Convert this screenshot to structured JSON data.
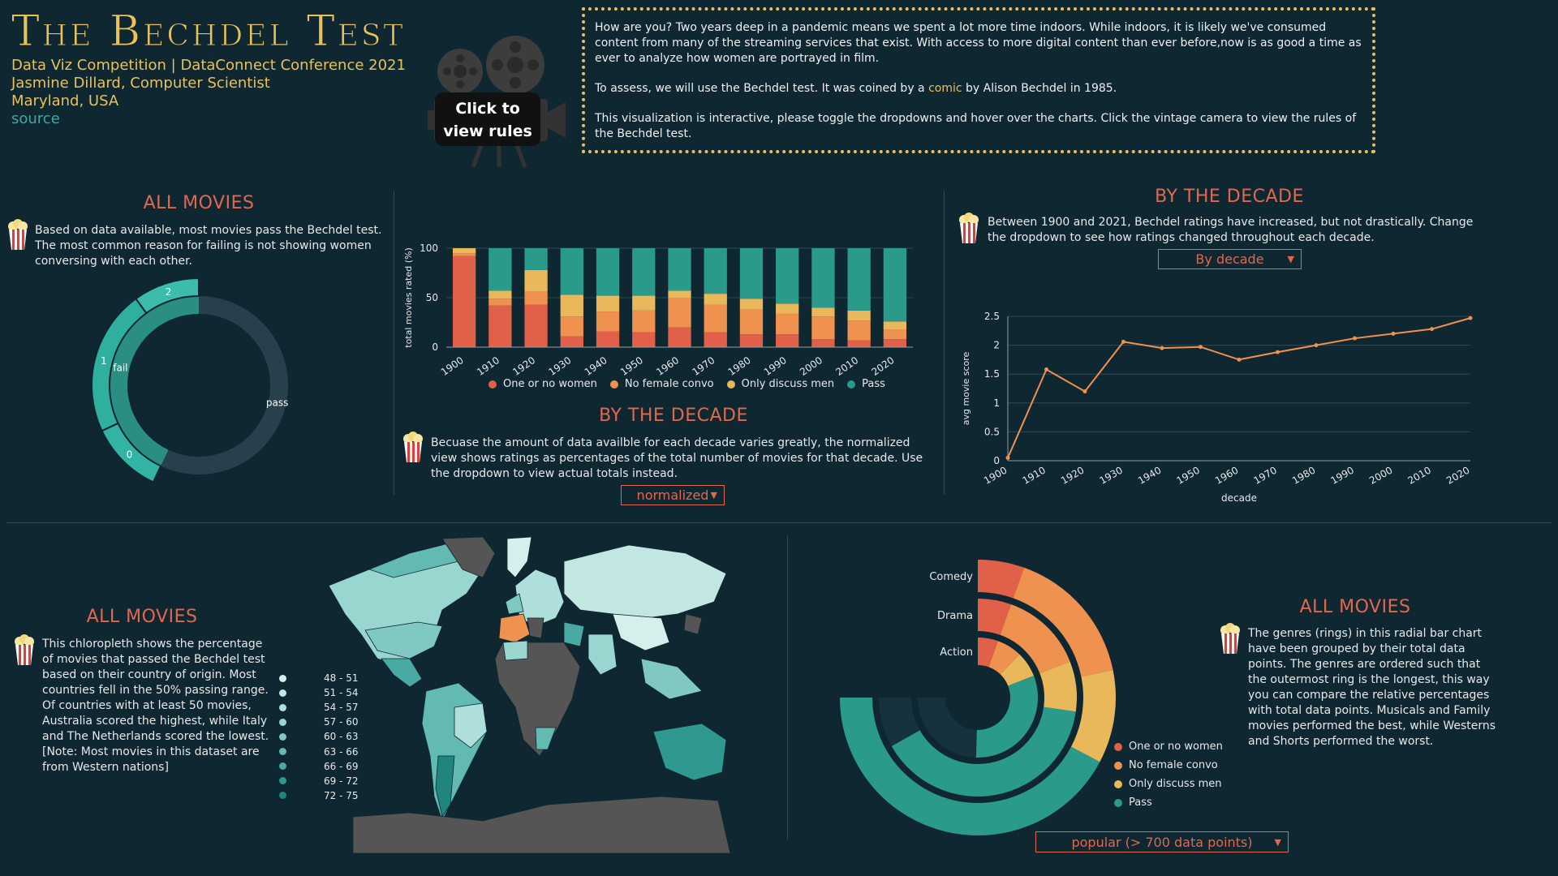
{
  "header": {
    "title": "The Bechdel Test",
    "line1": "Data Viz Competition | DataConnect Conference 2021",
    "line2": "Jasmine Dillard, Computer Scientist",
    "line3": "Maryland, USA",
    "source_link": "source",
    "camera_label_1": "Click to",
    "camera_label_2": "view rules"
  },
  "intro": {
    "p1": "How are you? Two years deep in a pandemic means we spent a lot more time indoors. While indoors, it is likely we've consumed content from many of the streaming services that exist. With access to more digital content than ever before,now is as good a time as ever to analyze how women are portrayed in film.",
    "p2_before": "To assess, we will use the Bechdel test. It was coined by a ",
    "p2_link": "comic",
    "p2_after": " by Alison Bechdel in 1985.",
    "p3": "This visualization is interactive, please toggle the dropdowns and hover over the charts. Click the vintage camera to view the rules of the Bechdel test."
  },
  "colors": {
    "background": "#0f2731",
    "accent": "#e0684e",
    "one_or_no_women": "#e0604a",
    "no_female_convo": "#f0924f",
    "only_discuss_men": "#e9b85a",
    "pass": "#2a9a8a",
    "title_gold": "#e8c15a"
  },
  "all_movies_donut": {
    "title": "ALL MOVIES",
    "text": "Based on data available, most movies pass the Bechdel test. The most common reason for failing is not showing women conversing with each other.",
    "inner_labels": [
      "fail",
      "pass"
    ],
    "outer_labels": [
      "2",
      "1",
      "0"
    ]
  },
  "decade_bar": {
    "title": "BY THE DECADE",
    "text": "Becuase the amount of data availble for each decade varies greatly, the normalized view shows ratings as percentages of the total number of movies for that decade. Use the dropdown to view actual totals instead.",
    "dropdown": "normalized",
    "legend": [
      "One or no women",
      "No female convo",
      "Only discuss men",
      "Pass"
    ]
  },
  "decade_line": {
    "title": "BY THE DECADE",
    "text": "Between 1900 and 2021, Bechdel ratings have increased, but not drastically. Change the dropdown to see how ratings changed throughout each decade.",
    "dropdown": "By decade"
  },
  "map": {
    "title": "ALL MOVIES",
    "text": "This chloropleth shows the percentage of movies that passed the Bechdel test based on their country of origin. Most countries fell in the 50% passing range. Of countries with at least 50 movies, Australia scored the highest, while Italy and The Netherlands scored the lowest.[Note: Most movies in this dataset are from Western nations]",
    "legend": [
      "48 - 51",
      "51 - 54",
      "54 - 57",
      "57 - 60",
      "60 - 63",
      "63 - 66",
      "66 - 69",
      "69 - 72",
      "72 - 75"
    ],
    "legend_colors": [
      "#d6efec",
      "#c2e7e3",
      "#aedfda",
      "#9ad6d0",
      "#7fc9c2",
      "#63bab2",
      "#48aaa2",
      "#2f9990",
      "#1f857d"
    ]
  },
  "radial": {
    "title": "ALL MOVIES",
    "text": "The genres (rings) in this radial bar chart have been grouped by their total data points. The genres are ordered such that the outermost ring is the longest, this way you can compare the relative percentages with total data points. Musicals and Family movies performed the best, while Westerns and Shorts performed the worst.",
    "genres": [
      "Comedy",
      "Drama",
      "Action"
    ],
    "legend": [
      "One or no women",
      "No female convo",
      "Only discuss men",
      "Pass"
    ],
    "dropdown": "popular (> 700 data points)"
  },
  "chart_data": [
    {
      "type": "bar",
      "stacked": true,
      "normalized": true,
      "categories": [
        "1900",
        "1910",
        "1920",
        "1930",
        "1940",
        "1950",
        "1960",
        "1970",
        "1980",
        "1990",
        "2000",
        "2010",
        "2020"
      ],
      "ylabel": "total movies rated (%)",
      "ylim": [
        0,
        100
      ],
      "yticks": [
        0,
        50,
        100
      ],
      "series": [
        {
          "name": "One or no women",
          "values": [
            92,
            42,
            43,
            11,
            16,
            15,
            20,
            15,
            13,
            13,
            8,
            7,
            8
          ]
        },
        {
          "name": "No female convo",
          "values": [
            3,
            7,
            13,
            20,
            20,
            22,
            30,
            28,
            25,
            21,
            23,
            20,
            10
          ]
        },
        {
          "name": "Only discuss men",
          "values": [
            5,
            8,
            22,
            22,
            16,
            15,
            7,
            11,
            11,
            10,
            9,
            10,
            8
          ]
        },
        {
          "name": "Pass",
          "values": [
            0,
            43,
            22,
            47,
            48,
            48,
            43,
            46,
            51,
            56,
            60,
            63,
            74
          ]
        }
      ]
    },
    {
      "type": "line",
      "x": [
        1900,
        1910,
        1920,
        1930,
        1940,
        1950,
        1960,
        1970,
        1980,
        1990,
        2000,
        2010,
        2020
      ],
      "y": [
        0.05,
        1.58,
        1.2,
        2.06,
        1.95,
        1.97,
        1.75,
        1.88,
        2.0,
        2.12,
        2.2,
        2.28,
        2.47
      ],
      "xlabel": "decade",
      "ylabel": "avg movie score",
      "ylim": [
        0,
        2.5
      ],
      "yticks": [
        0,
        0.5,
        1,
        1.5,
        2,
        2.5
      ],
      "grid": true
    },
    {
      "type": "pie",
      "rings": [
        "outer",
        "inner"
      ],
      "outer": [
        {
          "label": "2",
          "value": 10
        },
        {
          "label": "1",
          "value": 22
        },
        {
          "label": "0",
          "value": 11
        }
      ],
      "inner": [
        {
          "label": "fail",
          "value": 43
        },
        {
          "label": "pass",
          "value": 57
        }
      ]
    },
    {
      "type": "bar",
      "radial": true,
      "categories": [
        "Comedy",
        "Drama",
        "Action"
      ],
      "series": [
        {
          "name": "One or no women",
          "values": [
            4,
            4,
            4
          ]
        },
        {
          "name": "No female convo",
          "values": [
            12,
            10,
            5
          ]
        },
        {
          "name": "Only discuss men",
          "values": [
            8,
            6,
            5
          ]
        },
        {
          "name": "Pass",
          "values": [
            31,
            29,
            23
          ]
        }
      ]
    }
  ]
}
